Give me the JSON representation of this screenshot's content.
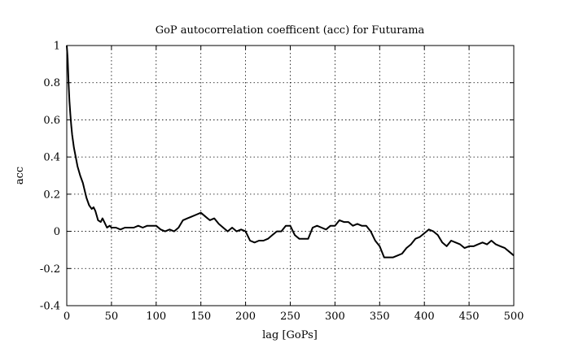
{
  "chart_data": {
    "type": "line",
    "title": "GoP autocorrelation coefficent (acc) for Futurama",
    "xlabel": "lag [GoPs]",
    "ylabel": "acc",
    "xlim": [
      0,
      500
    ],
    "ylim": [
      -0.4,
      1
    ],
    "xticks": [
      0,
      50,
      100,
      150,
      200,
      250,
      300,
      350,
      400,
      450,
      500
    ],
    "yticks": [
      -0.4,
      -0.2,
      0,
      0.2,
      0.4,
      0.6,
      0.8,
      1
    ],
    "grid": true,
    "series": [
      {
        "color": "#000000",
        "x": [
          0,
          1,
          2,
          3,
          4,
          5,
          6,
          8,
          10,
          12,
          15,
          18,
          20,
          22,
          25,
          28,
          30,
          32,
          35,
          38,
          40,
          42,
          45,
          48,
          50,
          55,
          60,
          65,
          70,
          75,
          80,
          85,
          90,
          95,
          100,
          105,
          110,
          115,
          120,
          125,
          130,
          135,
          140,
          145,
          150,
          155,
          160,
          165,
          170,
          175,
          180,
          185,
          190,
          195,
          200,
          205,
          210,
          215,
          220,
          225,
          230,
          235,
          240,
          245,
          250,
          255,
          260,
          265,
          270,
          275,
          280,
          285,
          290,
          295,
          300,
          305,
          310,
          315,
          320,
          325,
          330,
          335,
          340,
          345,
          350,
          355,
          360,
          365,
          370,
          375,
          380,
          385,
          390,
          395,
          400,
          405,
          410,
          415,
          420,
          425,
          430,
          435,
          440,
          445,
          450,
          455,
          460,
          465,
          470,
          475,
          480,
          485,
          490,
          495,
          500
        ],
        "y": [
          1.0,
          0.93,
          0.8,
          0.7,
          0.63,
          0.57,
          0.52,
          0.45,
          0.4,
          0.35,
          0.3,
          0.26,
          0.22,
          0.18,
          0.14,
          0.12,
          0.13,
          0.11,
          0.06,
          0.05,
          0.07,
          0.05,
          0.02,
          0.03,
          0.02,
          0.02,
          0.01,
          0.02,
          0.02,
          0.02,
          0.03,
          0.02,
          0.03,
          0.03,
          0.03,
          0.01,
          0.0,
          0.01,
          0.0,
          0.02,
          0.06,
          0.07,
          0.08,
          0.09,
          0.1,
          0.08,
          0.06,
          0.07,
          0.04,
          0.02,
          0.0,
          0.02,
          0.0,
          0.01,
          0.0,
          -0.05,
          -0.06,
          -0.05,
          -0.05,
          -0.04,
          -0.02,
          0.0,
          0.0,
          0.03,
          0.03,
          -0.02,
          -0.04,
          -0.04,
          -0.04,
          0.02,
          0.03,
          0.02,
          0.01,
          0.03,
          0.03,
          0.06,
          0.05,
          0.05,
          0.03,
          0.04,
          0.03,
          0.03,
          0.0,
          -0.05,
          -0.08,
          -0.14,
          -0.14,
          -0.14,
          -0.13,
          -0.12,
          -0.09,
          -0.07,
          -0.04,
          -0.03,
          -0.01,
          0.01,
          0.0,
          -0.02,
          -0.06,
          -0.08,
          -0.05,
          -0.06,
          -0.07,
          -0.09,
          -0.08,
          -0.08,
          -0.07,
          -0.06,
          -0.07,
          -0.05,
          -0.07,
          -0.08,
          -0.09,
          -0.11,
          -0.13
        ]
      }
    ]
  }
}
